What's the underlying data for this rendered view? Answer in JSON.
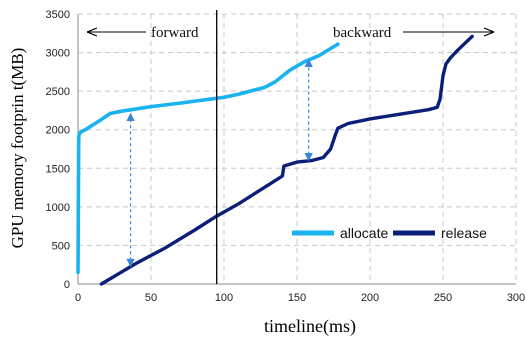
{
  "chart_data": {
    "type": "line",
    "xlabel": "timeline(ms)",
    "ylabel": "GPU memory footprin t(MB)",
    "xlim": [
      0,
      300
    ],
    "ylim": [
      0,
      3500
    ],
    "x_ticks": [
      0,
      50,
      100,
      150,
      200,
      250,
      300
    ],
    "y_ticks": [
      0,
      500,
      1000,
      1500,
      2000,
      2500,
      3000,
      3500
    ],
    "grid": "dashed",
    "legend_position": "bottom-right",
    "annotations": {
      "forward": "forward",
      "backward": "backward"
    },
    "divider_x": 95,
    "series": [
      {
        "name": "allocate",
        "color": "#1ab2ef",
        "points": [
          [
            0,
            150
          ],
          [
            0.5,
            1900
          ],
          [
            1,
            1960
          ],
          [
            5,
            2000
          ],
          [
            10,
            2060
          ],
          [
            15,
            2120
          ],
          [
            22,
            2210
          ],
          [
            30,
            2240
          ],
          [
            50,
            2300
          ],
          [
            70,
            2345
          ],
          [
            90,
            2395
          ],
          [
            100,
            2420
          ],
          [
            110,
            2460
          ],
          [
            120,
            2510
          ],
          [
            128,
            2550
          ],
          [
            135,
            2620
          ],
          [
            145,
            2770
          ],
          [
            155,
            2880
          ],
          [
            165,
            2960
          ],
          [
            172,
            3040
          ],
          [
            178,
            3110
          ]
        ]
      },
      {
        "name": "release",
        "color": "#0b1e78",
        "points": [
          [
            16,
            0
          ],
          [
            40,
            270
          ],
          [
            60,
            470
          ],
          [
            80,
            700
          ],
          [
            95,
            880
          ],
          [
            110,
            1040
          ],
          [
            130,
            1280
          ],
          [
            140,
            1400
          ],
          [
            141,
            1530
          ],
          [
            150,
            1580
          ],
          [
            160,
            1600
          ],
          [
            168,
            1640
          ],
          [
            173,
            1750
          ],
          [
            176,
            1920
          ],
          [
            178,
            2020
          ],
          [
            185,
            2080
          ],
          [
            200,
            2140
          ],
          [
            220,
            2200
          ],
          [
            240,
            2260
          ],
          [
            246,
            2290
          ],
          [
            248,
            2400
          ],
          [
            250,
            2700
          ],
          [
            252,
            2850
          ],
          [
            255,
            2930
          ],
          [
            260,
            3030
          ],
          [
            265,
            3120
          ],
          [
            270,
            3210
          ]
        ]
      }
    ],
    "arrows": [
      {
        "x": 36,
        "y_from": 230,
        "y_to": 2210
      },
      {
        "x": 158,
        "y_from": 1600,
        "y_to": 2910
      }
    ]
  }
}
